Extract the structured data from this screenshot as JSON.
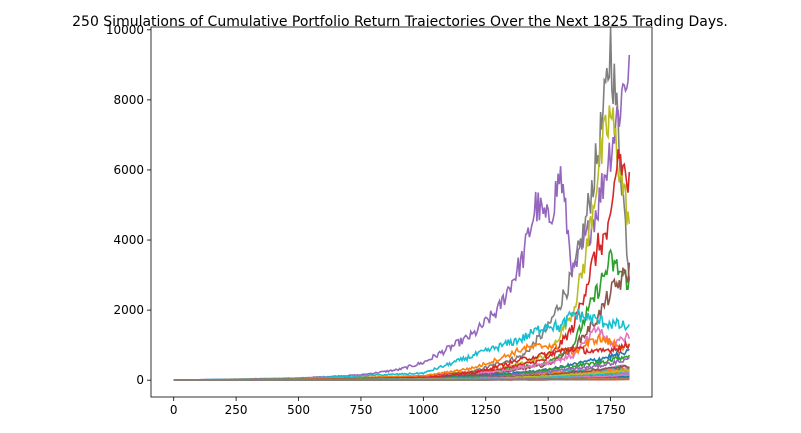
{
  "chart_data": {
    "type": "line",
    "title": "250 Simulations of Cumulative Portfolio Return Trajectories Over the Next 1825 Trading Days.",
    "xlabel": "",
    "ylabel": "",
    "xlim": [
      -91,
      1916
    ],
    "ylim": [
      -480,
      10080
    ],
    "xticks": [
      0,
      250,
      500,
      750,
      1000,
      1250,
      1500,
      1750
    ],
    "yticks": [
      0,
      2000,
      4000,
      6000,
      8000,
      10000
    ],
    "grid": false,
    "legend": "none",
    "n_simulations": 250,
    "n_days": 1825,
    "colors": [
      "#1f77b4",
      "#ff7f0e",
      "#2ca02c",
      "#d62728",
      "#9467bd",
      "#8c564b",
      "#e377c2",
      "#7f7f7f",
      "#bcbd22",
      "#17becf"
    ],
    "series": [
      {
        "color": "#7f7f7f",
        "x": [
          0,
          500,
          1000,
          1200,
          1400,
          1500,
          1600,
          1650,
          1700,
          1730,
          1750,
          1780,
          1825
        ],
        "values": [
          1,
          40,
          120,
          250,
          700,
          1500,
          3000,
          4500,
          6500,
          8000,
          9600,
          7200,
          3000
        ]
      },
      {
        "color": "#9467bd",
        "x": [
          0,
          500,
          750,
          900,
          1000,
          1100,
          1200,
          1300,
          1400,
          1450,
          1500,
          1550,
          1600,
          1700,
          1825
        ],
        "values": [
          1,
          60,
          150,
          300,
          500,
          900,
          1300,
          2000,
          3500,
          5000,
          4500,
          5900,
          3000,
          5000,
          9100
        ]
      },
      {
        "color": "#bcbd22",
        "x": [
          0,
          500,
          1000,
          1300,
          1500,
          1600,
          1650,
          1700,
          1750,
          1825
        ],
        "values": [
          1,
          30,
          120,
          300,
          700,
          2000,
          3500,
          6000,
          7600,
          4500
        ]
      },
      {
        "color": "#d62728",
        "x": [
          0,
          500,
          1000,
          1300,
          1500,
          1600,
          1700,
          1750,
          1780,
          1825
        ],
        "values": [
          1,
          25,
          110,
          300,
          600,
          1500,
          3800,
          4300,
          6500,
          5500
        ]
      },
      {
        "color": "#2ca02c",
        "x": [
          0,
          500,
          1000,
          1300,
          1500,
          1600,
          1700,
          1750,
          1825
        ],
        "values": [
          1,
          20,
          80,
          250,
          500,
          1000,
          2600,
          3400,
          2800
        ]
      },
      {
        "color": "#8c564b",
        "x": [
          0,
          500,
          1000,
          1300,
          1500,
          1600,
          1700,
          1750,
          1825
        ],
        "values": [
          1,
          18,
          70,
          200,
          450,
          900,
          1800,
          2500,
          3100
        ]
      },
      {
        "color": "#17becf",
        "x": [
          0,
          500,
          1000,
          1200,
          1400,
          1500,
          1550,
          1600,
          1700,
          1825
        ],
        "values": [
          1,
          50,
          200,
          700,
          1200,
          1600,
          1500,
          1900,
          1700,
          1500
        ]
      },
      {
        "color": "#e377c2",
        "x": [
          0,
          500,
          1000,
          1300,
          1500,
          1600,
          1700,
          1750,
          1825
        ],
        "values": [
          1,
          20,
          90,
          250,
          500,
          700,
          1500,
          1000,
          1300
        ]
      },
      {
        "color": "#ff7f0e",
        "x": [
          0,
          500,
          1000,
          1200,
          1300,
          1400,
          1500,
          1600,
          1700,
          1825
        ],
        "values": [
          1,
          30,
          120,
          350,
          600,
          900,
          1000,
          800,
          1200,
          900
        ]
      },
      {
        "color": "#1f77b4",
        "x": [
          0,
          500,
          1000,
          1300,
          1500,
          1700,
          1825
        ],
        "values": [
          1,
          15,
          60,
          150,
          300,
          600,
          800
        ]
      },
      {
        "color": "#d62728",
        "x": [
          0,
          500,
          1000,
          1200,
          1400,
          1600,
          1700,
          1825
        ],
        "values": [
          1,
          20,
          80,
          200,
          600,
          900,
          800,
          1000
        ]
      },
      {
        "color": "#2ca02c",
        "x": [
          0,
          500,
          1000,
          1300,
          1500,
          1700,
          1825
        ],
        "values": [
          1,
          15,
          50,
          120,
          300,
          500,
          700
        ]
      },
      {
        "color": "#9467bd",
        "x": [
          0,
          500,
          1000,
          1300,
          1500,
          1700,
          1825
        ],
        "values": [
          1,
          12,
          40,
          100,
          250,
          400,
          600
        ]
      },
      {
        "color": "#8c564b",
        "x": [
          0,
          500,
          1000,
          1300,
          1500,
          1700,
          1825
        ],
        "values": [
          1,
          10,
          30,
          80,
          150,
          300,
          400
        ]
      },
      {
        "color": "#bcbd22",
        "x": [
          0,
          500,
          1000,
          1300,
          1500,
          1700,
          1825
        ],
        "values": [
          1,
          10,
          30,
          60,
          120,
          200,
          300
        ]
      },
      {
        "color": "#17becf",
        "x": [
          0,
          500,
          1000,
          1300,
          1500,
          1700,
          1825
        ],
        "values": [
          1,
          8,
          20,
          40,
          80,
          150,
          200
        ]
      },
      {
        "color": "#e377c2",
        "x": [
          0,
          500,
          1000,
          1300,
          1500,
          1700,
          1825
        ],
        "values": [
          1,
          6,
          15,
          30,
          60,
          100,
          150
        ]
      },
      {
        "color": "#1f77b4",
        "x": [
          0,
          500,
          1000,
          1300,
          1500,
          1700,
          1825
        ],
        "values": [
          1,
          5,
          10,
          20,
          40,
          60,
          80
        ]
      },
      {
        "color": "#ff7f0e",
        "x": [
          0,
          500,
          1000,
          1300,
          1500,
          1700,
          1825
        ],
        "values": [
          1,
          4,
          8,
          15,
          25,
          40,
          50
        ]
      },
      {
        "color": "#7f7f7f",
        "x": [
          0,
          500,
          1000,
          1300,
          1500,
          1700,
          1825
        ],
        "values": [
          1,
          3,
          6,
          10,
          15,
          25,
          30
        ]
      }
    ]
  }
}
